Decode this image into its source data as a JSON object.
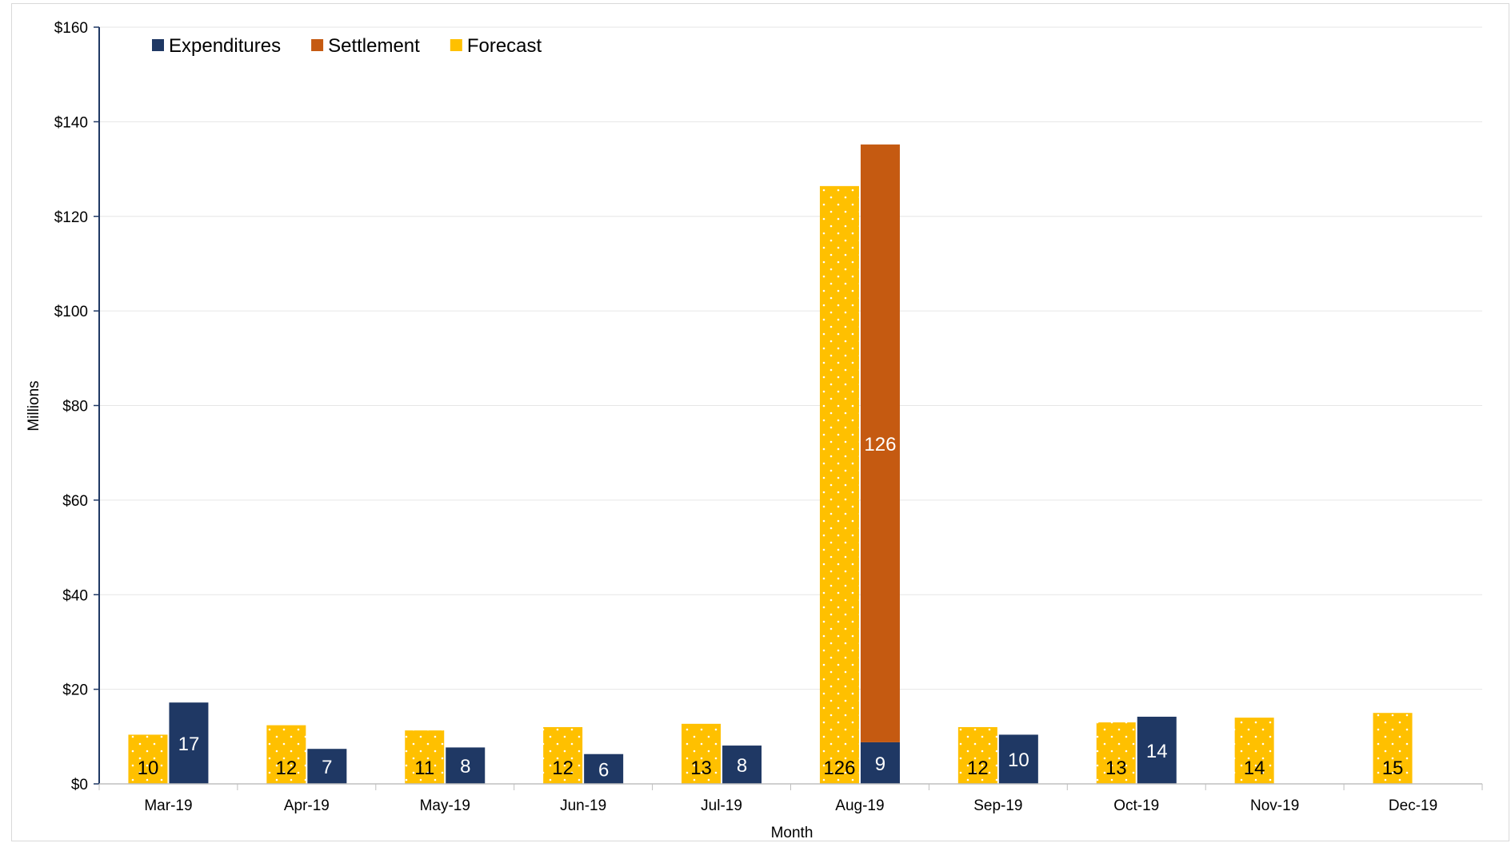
{
  "chart_data": {
    "type": "bar",
    "title": "",
    "xlabel": "Month",
    "ylabel": "Millions",
    "ylim": [
      0,
      160
    ],
    "y_ticks": [
      0,
      20,
      40,
      60,
      80,
      100,
      120,
      140,
      160
    ],
    "y_tick_labels": [
      "$0",
      "$20",
      "$40",
      "$60",
      "$80",
      "$100",
      "$120",
      "$140",
      "$160"
    ],
    "grid": true,
    "legend_position": "top-left",
    "categories": [
      "Mar-19",
      "Apr-19",
      "May-19",
      "Jun-19",
      "Jul-19",
      "Aug-19",
      "Sep-19",
      "Oct-19",
      "Nov-19",
      "Dec-19"
    ],
    "series": [
      {
        "name": "Forecast",
        "color": "#FFC000",
        "pattern": "dotted",
        "values": [
          10.4,
          12.4,
          11.3,
          12.0,
          12.7,
          126.4,
          12.0,
          13.0,
          14.0,
          15.0
        ],
        "labels": [
          "10",
          "12",
          "11",
          "12",
          "13",
          "126",
          "12",
          "13",
          "14",
          "15"
        ]
      },
      {
        "name": "Expenditures",
        "color": "#1F3864",
        "values": [
          17.2,
          7.4,
          7.7,
          6.3,
          8.1,
          8.8,
          10.4,
          14.2,
          null,
          null
        ],
        "labels": [
          "17",
          "7",
          "8",
          "6",
          "8",
          "9",
          "10",
          "14",
          "",
          ""
        ]
      },
      {
        "name": "Settlement",
        "color": "#C55A11",
        "stacked_on": "Expenditures",
        "values": [
          null,
          null,
          null,
          null,
          null,
          126.4,
          null,
          null,
          null,
          null
        ],
        "labels": [
          "",
          "",
          "",
          "",
          "",
          "126",
          "",
          "",
          "",
          ""
        ]
      }
    ],
    "legend": [
      {
        "name": "Expenditures",
        "color": "#1F3864"
      },
      {
        "name": "Settlement",
        "color": "#C55A11"
      },
      {
        "name": "Forecast",
        "color": "#FFC000"
      }
    ],
    "axis_color": "#1F3864",
    "grid_color": "#e6e6e6"
  }
}
